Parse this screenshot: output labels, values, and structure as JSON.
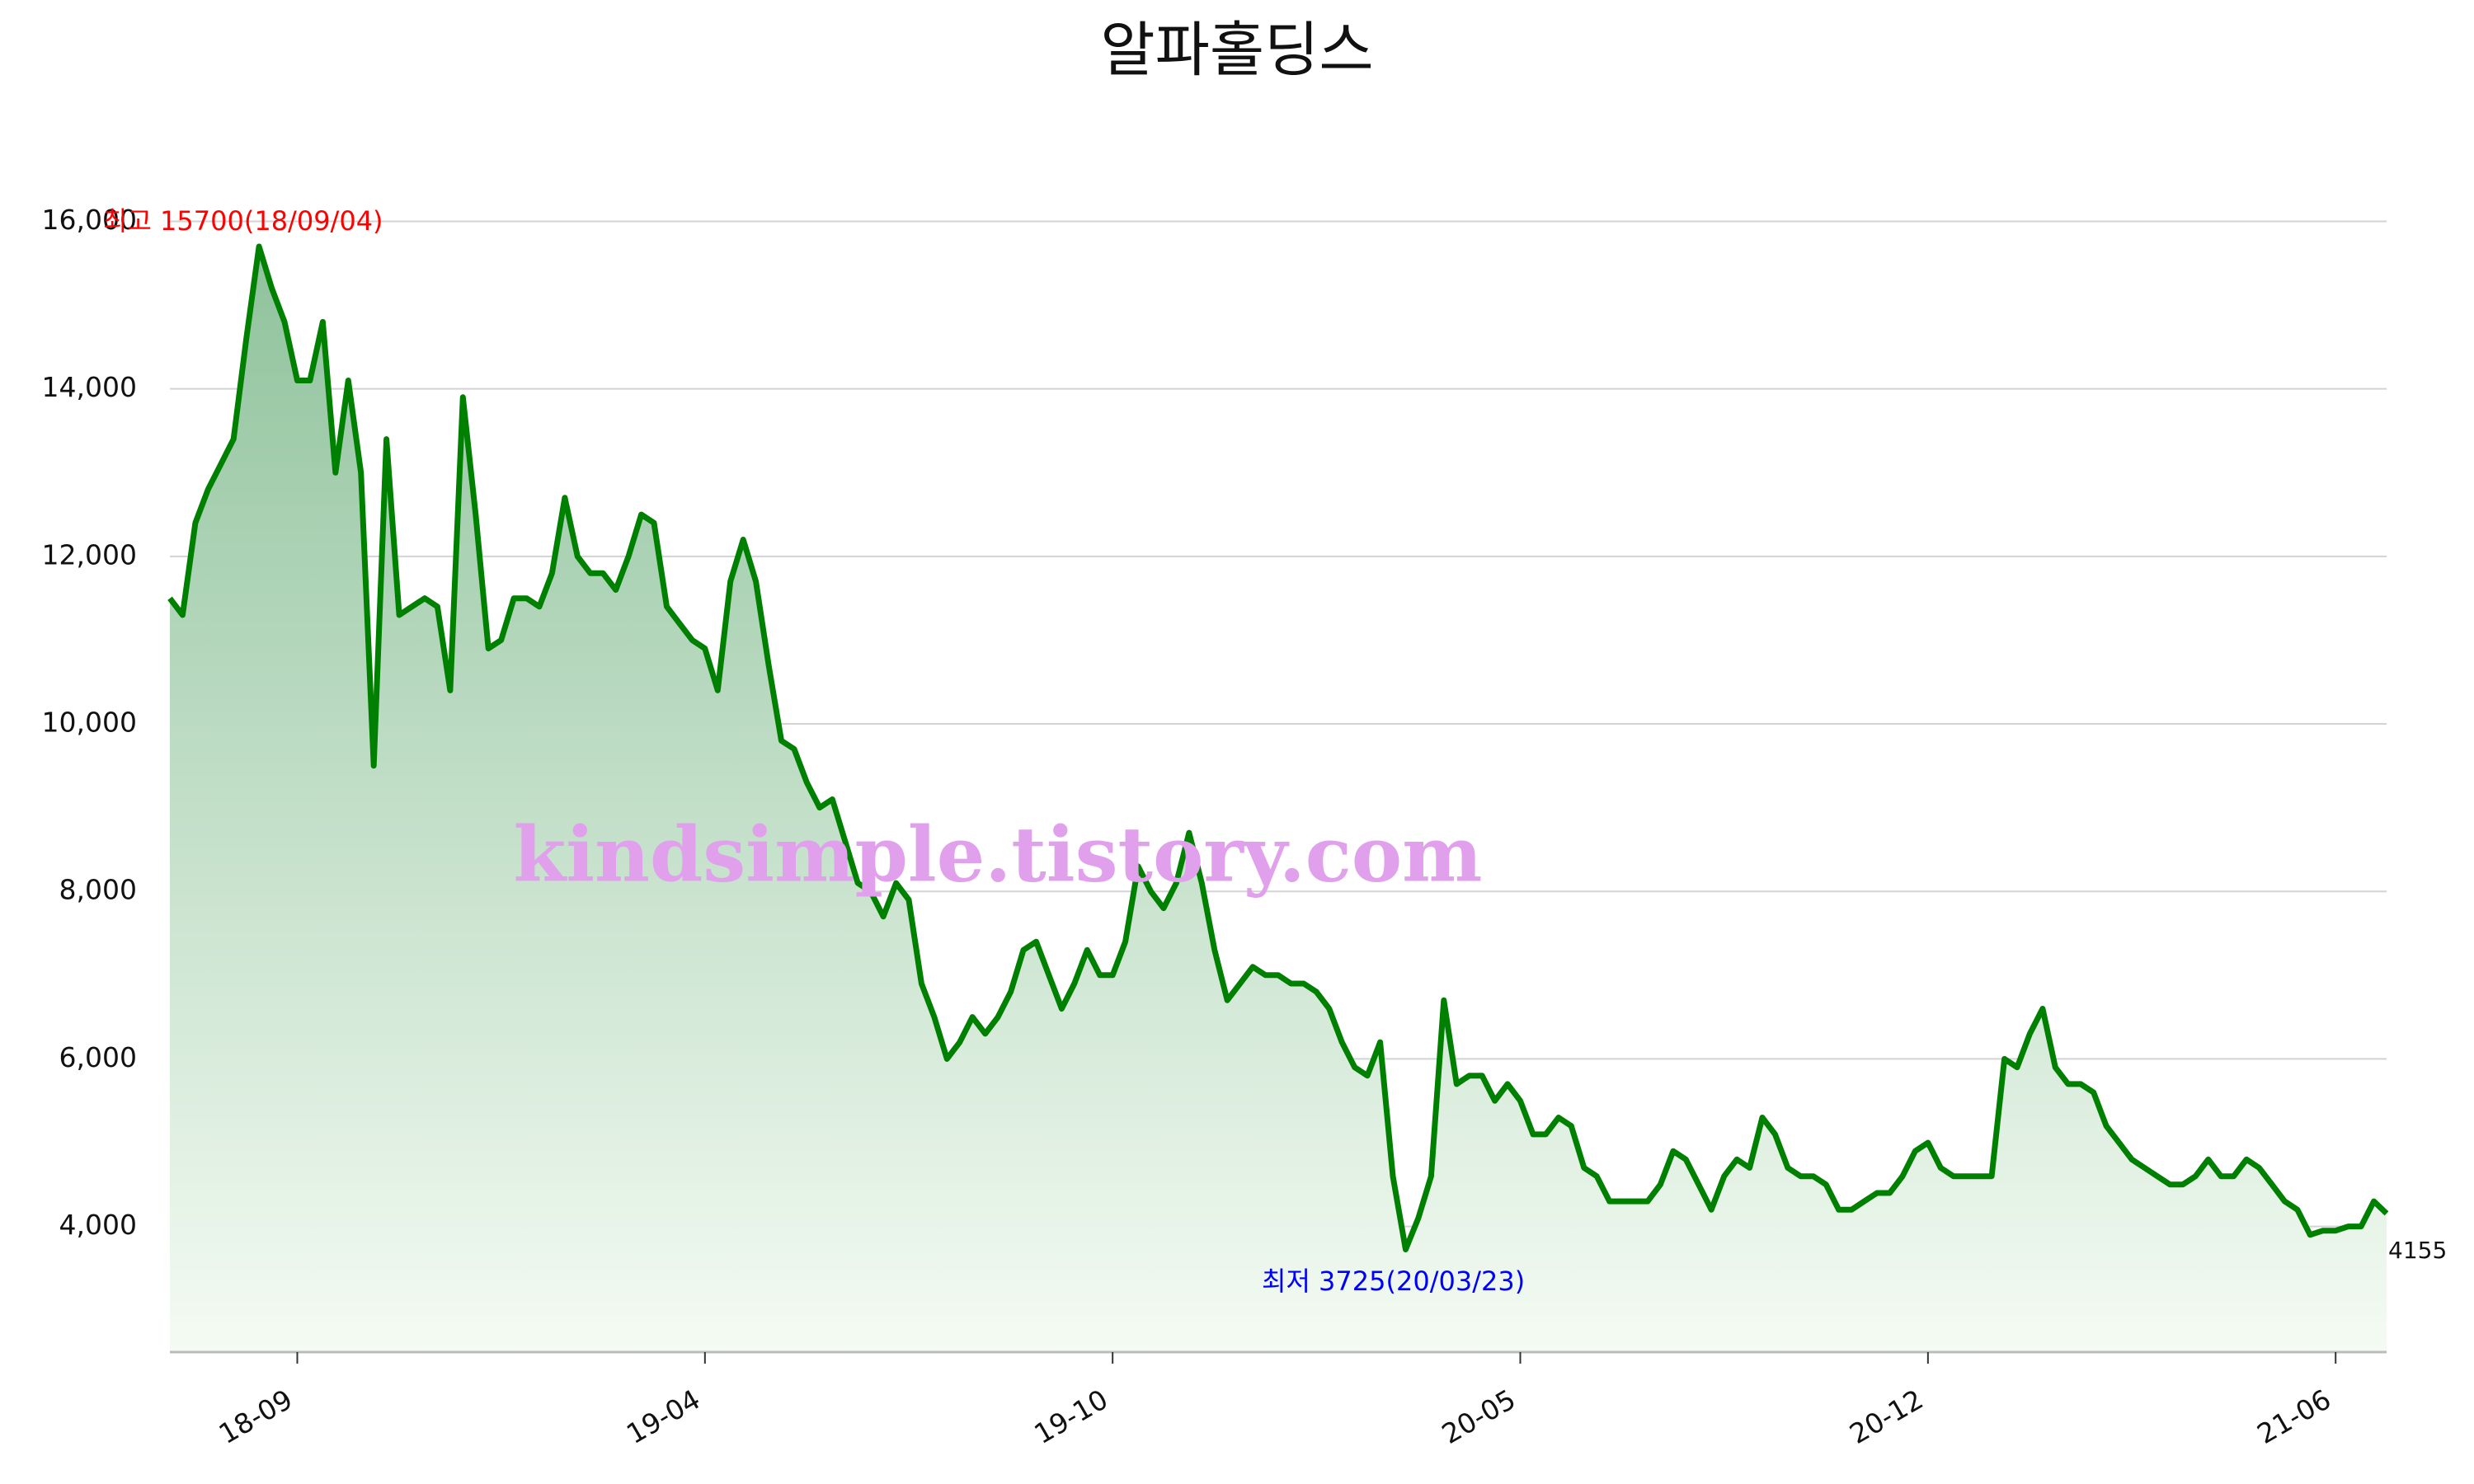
{
  "chart_data": {
    "type": "line",
    "title": "알파홀딩스",
    "watermark": "kindsimple.tistory.com",
    "annotations": [
      {
        "text": "최고 15700(18/09/04)",
        "color": "#ff0000"
      },
      {
        "text": "최저 3725(20/03/23)",
        "color": "#0000ff"
      },
      {
        "text": "4155",
        "color": "#111111"
      }
    ],
    "categories": [
      null,
      null,
      null,
      null,
      null,
      null,
      null,
      null,
      null,
      null,
      "18-09",
      null,
      null,
      null,
      null,
      null,
      null,
      null,
      null,
      null,
      null,
      null,
      null,
      null,
      null,
      null,
      null,
      null,
      null,
      null,
      null,
      null,
      null,
      null,
      null,
      null,
      null,
      null,
      null,
      null,
      null,
      null,
      "19-04",
      null,
      null,
      null,
      null,
      null,
      null,
      null,
      null,
      null,
      null,
      null,
      null,
      null,
      null,
      null,
      null,
      null,
      null,
      null,
      null,
      null,
      null,
      null,
      null,
      null,
      null,
      null,
      null,
      null,
      null,
      null,
      "19-10",
      null,
      null,
      null,
      null,
      null,
      null,
      null,
      null,
      null,
      null,
      null,
      null,
      null,
      null,
      null,
      null,
      null,
      null,
      null,
      null,
      null,
      null,
      null,
      null,
      null,
      null,
      null,
      null,
      null,
      null,
      null,
      "20-05",
      null,
      null,
      null,
      null,
      null,
      null,
      null,
      null,
      null,
      null,
      null,
      null,
      null,
      null,
      null,
      null,
      null,
      null,
      null,
      null,
      null,
      null,
      null,
      null,
      null,
      null,
      null,
      null,
      null,
      null,
      null,
      "20-12",
      null,
      null,
      null,
      null,
      null,
      null,
      null,
      null,
      null,
      null,
      null,
      null,
      null,
      null,
      null,
      null,
      null,
      null,
      null,
      null,
      null,
      null,
      null,
      null,
      null,
      null,
      null,
      null,
      null,
      null,
      null,
      "21-06",
      null,
      null,
      null,
      null
    ],
    "values": [
      11500,
      11300,
      12400,
      12800,
      13100,
      13400,
      14600,
      15700,
      15200,
      14800,
      14100,
      14100,
      14800,
      13000,
      14100,
      13000,
      9500,
      13400,
      11300,
      11400,
      11500,
      11400,
      10400,
      13900,
      12500,
      10900,
      11000,
      11500,
      11500,
      11400,
      11800,
      12700,
      12000,
      11800,
      11800,
      11600,
      12000,
      12500,
      12400,
      11400,
      11200,
      11000,
      10900,
      10400,
      11700,
      12200,
      11700,
      10700,
      9800,
      9700,
      9300,
      9000,
      9100,
      8600,
      8100,
      8000,
      7700,
      8100,
      7900,
      6900,
      6500,
      6000,
      6200,
      6500,
      6300,
      6500,
      6800,
      7300,
      7400,
      7000,
      6600,
      6900,
      7300,
      7000,
      7000,
      7400,
      8300,
      8000,
      7800,
      8100,
      8700,
      8100,
      7300,
      6700,
      6900,
      7100,
      7000,
      7000,
      6900,
      6900,
      6800,
      6600,
      6200,
      5900,
      5800,
      6200,
      4600,
      3725,
      4100,
      4600,
      6700,
      5700,
      5800,
      5800,
      5500,
      5700,
      5500,
      5100,
      5100,
      5300,
      5200,
      4700,
      4600,
      4300,
      4300,
      4300,
      4300,
      4500,
      4900,
      4800,
      4500,
      4200,
      4600,
      4800,
      4700,
      5300,
      5100,
      4700,
      4600,
      4600,
      4500,
      4200,
      4200,
      4300,
      4400,
      4400,
      4600,
      4900,
      5000,
      4700,
      4600,
      4600,
      4600,
      4600,
      6000,
      5900,
      6300,
      6600,
      5900,
      5700,
      5700,
      5600,
      5200,
      5000,
      4800,
      4700,
      4600,
      4500,
      4500,
      4600,
      4800,
      4600,
      4600,
      4800,
      4700,
      4500,
      4300,
      4200,
      3900,
      3950,
      3950,
      4000,
      4000,
      4300,
      4155
    ],
    "color": "#008000",
    "fill_top": "#8fc29c",
    "fill_bottom": "#f4fbf3",
    "ylim": [
      2500,
      16300
    ],
    "yticks": [
      {
        "value": 4000,
        "label": "4,000"
      },
      {
        "value": 6000,
        "label": "6,000"
      },
      {
        "value": 8000,
        "label": "8,000"
      },
      {
        "value": 10000,
        "label": "10,000"
      },
      {
        "value": 12000,
        "label": "12,000"
      },
      {
        "value": 14000,
        "label": "14,000"
      },
      {
        "value": 16000,
        "label": "16,000"
      }
    ],
    "grid": true
  }
}
